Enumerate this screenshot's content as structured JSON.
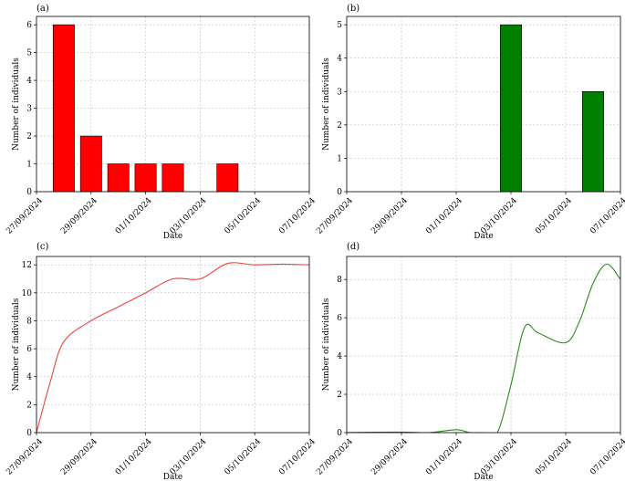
{
  "x_tick_labels": [
    "27/09/2024",
    "29/09/2024",
    "01/10/2024",
    "03/10/2024",
    "05/10/2024",
    "07/10/2024"
  ],
  "chart_data": [
    {
      "panel": "(a)",
      "type": "bar",
      "color": "#ff0000",
      "xlabel": "Date",
      "ylabel": "Number of individuals",
      "xlim": [
        "2024-09-27",
        "2024-10-07"
      ],
      "ylim": [
        0,
        6.3
      ],
      "yticks": [
        0,
        1,
        2,
        3,
        4,
        5,
        6
      ],
      "x": [
        "2024-09-28",
        "2024-09-29",
        "2024-09-30",
        "2024-10-01",
        "2024-10-02",
        "2024-10-04"
      ],
      "values": [
        6,
        2,
        1,
        1,
        1,
        1
      ],
      "grid": true
    },
    {
      "panel": "(b)",
      "type": "bar",
      "color": "#008000",
      "xlabel": "Date",
      "ylabel": "Number of individuals",
      "xlim": [
        "2024-09-27",
        "2024-10-07"
      ],
      "ylim": [
        0,
        5.25
      ],
      "yticks": [
        0,
        1,
        2,
        3,
        4,
        5
      ],
      "x": [
        "2024-10-03",
        "2024-10-06"
      ],
      "values": [
        5,
        3
      ],
      "grid": true
    },
    {
      "panel": "(c)",
      "type": "line",
      "color": "#e8443a",
      "xlabel": "Date",
      "ylabel": "Number of individuals",
      "xlim": [
        "2024-09-27",
        "2024-10-07"
      ],
      "ylim": [
        0,
        12.6
      ],
      "yticks": [
        0,
        2,
        4,
        6,
        8,
        10,
        12
      ],
      "x": [
        "2024-09-27",
        "2024-09-27T12:00",
        "2024-09-28",
        "2024-09-29",
        "2024-09-30",
        "2024-10-01",
        "2024-10-02",
        "2024-10-03",
        "2024-10-04",
        "2024-10-05",
        "2024-10-06",
        "2024-10-07"
      ],
      "values": [
        0,
        3.6,
        6.5,
        8,
        9,
        10,
        11,
        11,
        12.1,
        12,
        12.05,
        12
      ],
      "grid": true
    },
    {
      "panel": "(d)",
      "type": "line",
      "color": "#2a8a1a",
      "xlabel": "Date",
      "ylabel": "Number of individuals",
      "xlim": [
        "2024-09-27",
        "2024-10-07"
      ],
      "ylim": [
        0,
        9.2
      ],
      "yticks": [
        0,
        2,
        4,
        6,
        8
      ],
      "x": [
        "2024-09-27",
        "2024-09-29",
        "2024-09-30",
        "2024-10-01",
        "2024-10-01T12:00",
        "2024-10-02",
        "2024-10-02T12:00",
        "2024-10-03",
        "2024-10-03T12:00",
        "2024-10-04",
        "2024-10-05",
        "2024-10-05T12:00",
        "2024-10-06",
        "2024-10-06T12:00",
        "2024-10-07"
      ],
      "values": [
        0,
        0.03,
        0,
        0.15,
        0,
        0,
        0,
        2.5,
        5.5,
        5.2,
        4.7,
        5.8,
        7.8,
        8.8,
        8
      ],
      "grid": true
    }
  ]
}
